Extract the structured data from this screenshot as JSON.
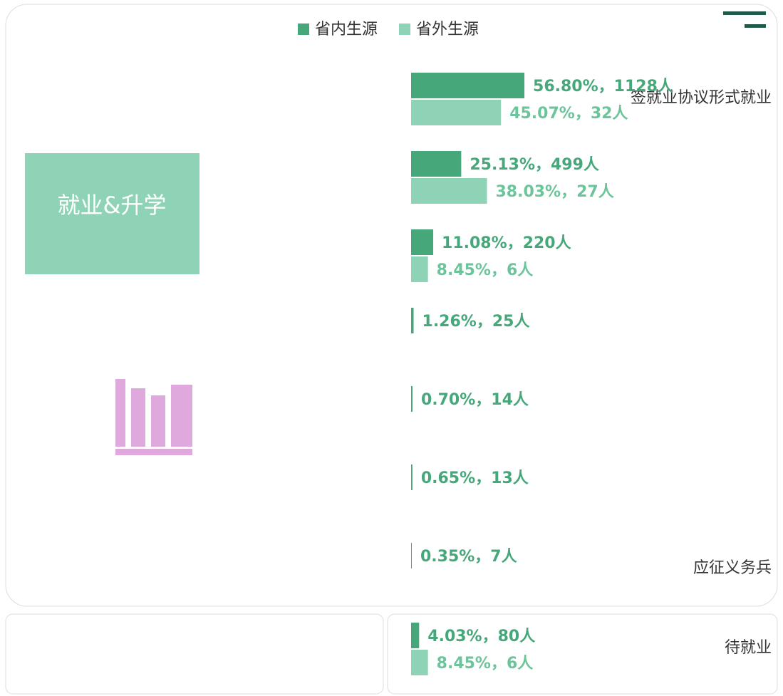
{
  "chart_data": {
    "type": "hbar",
    "annotation": "就业&升学",
    "categories": [
      "签就业协议形式就业",
      null,
      null,
      null,
      null,
      null,
      "应征义务兵",
      "待就业"
    ],
    "series": [
      {
        "name": "省内生源",
        "color": "#46a77a",
        "values": [
          56.8,
          25.13,
          11.08,
          1.26,
          0.7,
          0.65,
          0.35,
          4.03
        ],
        "value_labels": [
          "56.80%，1128人",
          "25.13%，499人",
          "11.08%，220人",
          "1.26%，25人",
          "0.70%，14人",
          "0.65%，13人",
          "0.35%，7人",
          "4.03%，80人"
        ]
      },
      {
        "name": "省外生源",
        "color": "#8fd3b6",
        "values": [
          45.07,
          38.03,
          8.45,
          null,
          null,
          null,
          null,
          8.45
        ],
        "value_labels": [
          "45.07%，32人",
          "38.03%，27人",
          "8.45%，6人",
          null,
          null,
          null,
          null,
          "8.45%，6人"
        ]
      }
    ],
    "xlim": [
      0,
      100
    ]
  }
}
